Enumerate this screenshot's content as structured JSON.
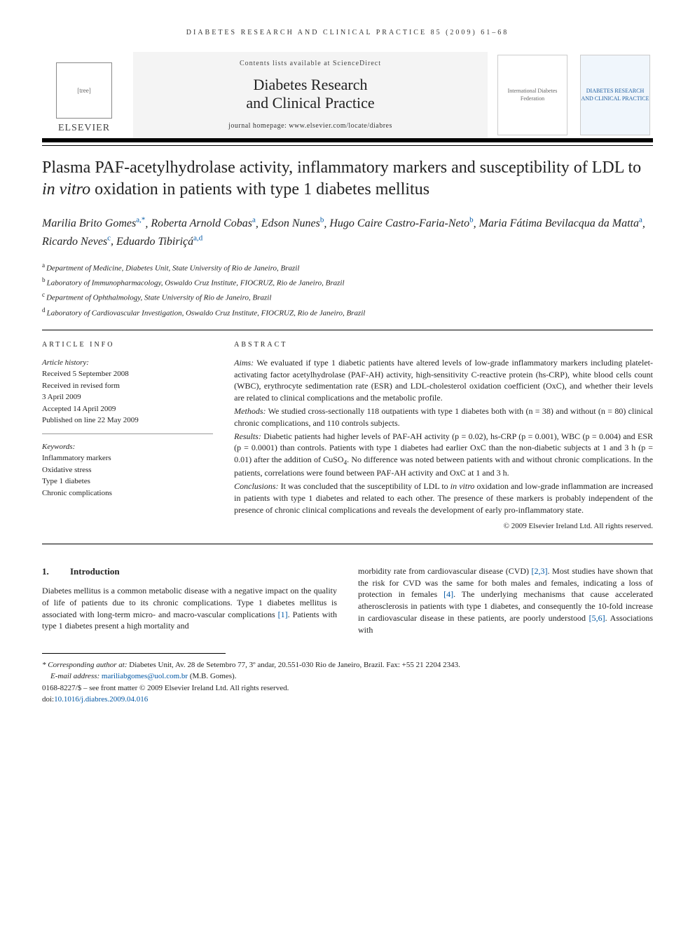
{
  "running_head": "DIABETES RESEARCH AND CLINICAL PRACTICE 85 (2009) 61–68",
  "masthead": {
    "publisher": "ELSEVIER",
    "contents_line": "Contents lists available at ScienceDirect",
    "journal_line1": "Diabetes Research",
    "journal_line2": "and Clinical Practice",
    "homepage": "journal homepage: www.elsevier.com/locate/diabres",
    "fed_caption": "International Diabetes Federation",
    "cover_caption": "DIABETES RESEARCH AND CLINICAL PRACTICE"
  },
  "title_pre": "Plasma PAF-acetylhydrolase activity, inflammatory markers and susceptibility of LDL to ",
  "title_em": "in vitro",
  "title_post": " oxidation in patients with type 1 diabetes mellitus",
  "authors": [
    {
      "name": "Marilia Brito Gomes",
      "sup": "a,*"
    },
    {
      "name": "Roberta Arnold Cobas",
      "sup": "a"
    },
    {
      "name": "Edson Nunes",
      "sup": "b"
    },
    {
      "name": "Hugo Caire Castro-Faria-Neto",
      "sup": "b"
    },
    {
      "name": "Maria Fátima Bevilacqua da Matta",
      "sup": "a"
    },
    {
      "name": "Ricardo Neves",
      "sup": "c"
    },
    {
      "name": "Eduardo Tibiriçá",
      "sup": "a,d"
    }
  ],
  "affiliations": [
    {
      "key": "a",
      "text": "Department of Medicine, Diabetes Unit, State University of Rio de Janeiro, Brazil"
    },
    {
      "key": "b",
      "text": "Laboratory of Immunopharmacology, Oswaldo Cruz Institute, FIOCRUZ, Rio de Janeiro, Brazil"
    },
    {
      "key": "c",
      "text": "Department of Ophthalmology, State University of Rio de Janeiro, Brazil"
    },
    {
      "key": "d",
      "text": "Laboratory of Cardiovascular Investigation, Oswaldo Cruz Institute, FIOCRUZ, Rio de Janeiro, Brazil"
    }
  ],
  "article_info": {
    "head": "ARTICLE INFO",
    "history_label": "Article history:",
    "history": [
      "Received 5 September 2008",
      "Received in revised form",
      "3 April 2009",
      "Accepted 14 April 2009",
      "Published on line 22 May 2009"
    ],
    "keywords_label": "Keywords:",
    "keywords": [
      "Inflammatory markers",
      "Oxidative stress",
      "Type 1 diabetes",
      "Chronic complications"
    ]
  },
  "abstract": {
    "head": "ABSTRACT",
    "aims_label": "Aims:",
    "aims": "We evaluated if type 1 diabetic patients have altered levels of low-grade inflammatory markers including platelet-activating factor acetylhydrolase (PAF-AH) activity, high-sensitivity C-reactive protein (hs-CRP), white blood cells count (WBC), erythrocyte sedimentation rate (ESR) and LDL-cholesterol oxidation coefficient (OxC), and whether their levels are related to clinical complications and the metabolic profile.",
    "methods_label": "Methods:",
    "methods": "We studied cross-sectionally 118 outpatients with type 1 diabetes both with (n = 38) and without (n = 80) clinical chronic complications, and 110 controls subjects.",
    "results_label": "Results:",
    "results_p1": "Diabetic patients had higher levels of PAF-AH activity (p = 0.02), hs-CRP (p = 0.001), WBC (p = 0.004) and ESR (p = 0.0001) than controls. Patients with type 1 diabetes had earlier OxC than the non-diabetic subjects at 1 and 3 h (p = 0.01) after the addition of CuSO",
    "results_sub": "4",
    "results_p2": ". No difference was noted between patients with and without chronic complications. In the patients, correlations were found between PAF-AH activity and OxC at 1 and 3 h.",
    "conclusions_label": "Conclusions:",
    "conclusions_p1": "It was concluded that the susceptibility of LDL to ",
    "conclusions_em": "in vitro",
    "conclusions_p2": " oxidation and low-grade inflammation are increased in patients with type 1 diabetes and related to each other. The presence of these markers is probably independent of the presence of chronic clinical complications and reveals the development of early pro-inflammatory state.",
    "copyright": "© 2009 Elsevier Ireland Ltd. All rights reserved."
  },
  "intro": {
    "num": "1.",
    "heading": "Introduction",
    "col1_p1a": "Diabetes mellitus is a common metabolic disease with a negative impact on the quality of life of patients due to its chronic complications. Type 1 diabetes mellitus is associated with long-term micro- and macro-vascular complications ",
    "col1_ref1": "[1]",
    "col1_p1b": ". Patients with type 1 diabetes present a high mortality and",
    "col2_a": "morbidity rate from cardiovascular disease (CVD) ",
    "col2_ref23": "[2,3]",
    "col2_b": ". Most studies have shown that the risk for CVD was the same for both males and females, indicating a loss of protection in females ",
    "col2_ref4": "[4]",
    "col2_c": ". The underlying mechanisms that cause accelerated atherosclerosis in patients with type 1 diabetes, and consequently the 10-fold increase in cardiovascular disease in these patients, are poorly understood ",
    "col2_ref56": "[5,6]",
    "col2_d": ". Associations with"
  },
  "footer": {
    "corr_label": "* Corresponding author at:",
    "corr_text": " Diabetes Unit, Av. 28 de Setembro 77, 3º andar, 20.551-030 Rio de Janeiro, Brazil. Fax: +55 21 2204 2343.",
    "email_label": "E-mail address: ",
    "email": "mariliabgomes@uol.com.br",
    "email_suffix": " (M.B. Gomes).",
    "issn_line": "0168-8227/$ – see front matter © 2009 Elsevier Ireland Ltd. All rights reserved.",
    "doi_label": "doi:",
    "doi": "10.1016/j.diabres.2009.04.016"
  },
  "colors": {
    "link": "#0056a3",
    "rule": "#000000",
    "gray_bg": "#f4f4f4"
  }
}
